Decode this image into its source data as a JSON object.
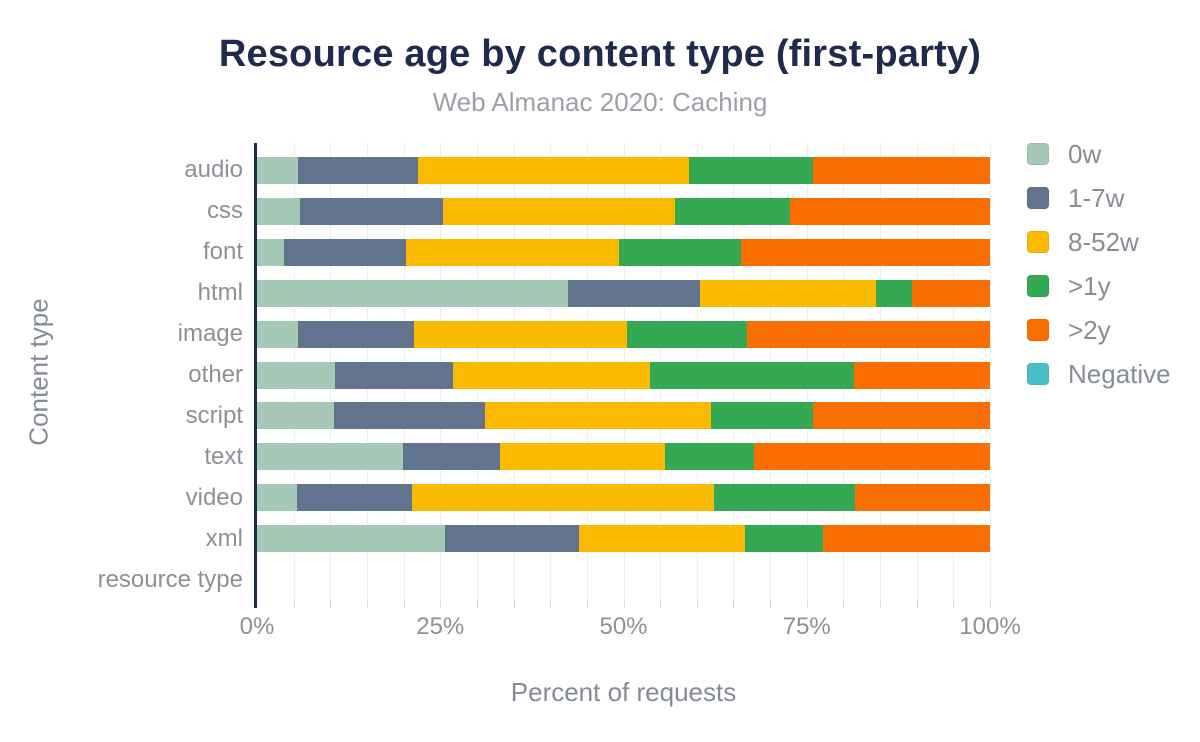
{
  "header": {
    "title": "Resource age by content type (first-party)",
    "subtitle": "Web Almanac 2020: Caching"
  },
  "chart_data": {
    "type": "bar",
    "orientation": "horizontal-stacked",
    "title": "Resource age by content type (first-party)",
    "subtitle": "Web Almanac 2020: Caching",
    "xlabel": "Percent of requests",
    "ylabel": "Content type",
    "xlim": [
      0,
      100
    ],
    "x_ticks": [
      "0%",
      "25%",
      "50%",
      "75%",
      "100%"
    ],
    "x_tick_values": [
      0,
      25,
      50,
      75,
      100
    ],
    "minor_grid_step_pct": 5,
    "grid": "vertical minor gridlines every 5%",
    "legend_position": "right",
    "categories": [
      "audio",
      "css",
      "font",
      "html",
      "image",
      "other",
      "script",
      "text",
      "video",
      "xml",
      "resource type"
    ],
    "series": [
      {
        "name": "0w",
        "color": "#a5c9b6",
        "values": [
          5.6,
          5.8,
          3.7,
          42.4,
          5.6,
          10.6,
          10.5,
          19.9,
          5.4,
          25.7,
          0
        ]
      },
      {
        "name": "1-7w",
        "color": "#62738d",
        "values": [
          16.4,
          19.6,
          16.6,
          18.1,
          15.8,
          16.1,
          20.6,
          13.3,
          15.8,
          18.2,
          0
        ]
      },
      {
        "name": "8-52w",
        "color": "#f9ba00",
        "values": [
          36.9,
          31.6,
          29.1,
          23.9,
          29.1,
          26.9,
          30.8,
          22.5,
          41.1,
          22.7,
          0
        ]
      },
      {
        "name": ">1y",
        "color": "#35a853",
        "values": [
          16.9,
          15.7,
          16.7,
          5.0,
          16.3,
          27.8,
          13.9,
          12.1,
          19.3,
          10.6,
          0
        ]
      },
      {
        "name": ">2y",
        "color": "#fa6e00",
        "values": [
          24.2,
          27.3,
          33.9,
          10.6,
          33.2,
          18.6,
          24.2,
          32.2,
          18.4,
          22.8,
          0
        ]
      },
      {
        "name": "Negative",
        "color": "#4bbfc9",
        "values": [
          0,
          0,
          0,
          0,
          0,
          0,
          0,
          0,
          0,
          0,
          0
        ]
      }
    ],
    "colors": {
      "title_text": "#1e2b4c",
      "subtitle_text": "#9ba1a7",
      "axis_label_text": "#8b9196",
      "axis_line": "#1b2a49",
      "gridline": "#eceef1"
    }
  }
}
